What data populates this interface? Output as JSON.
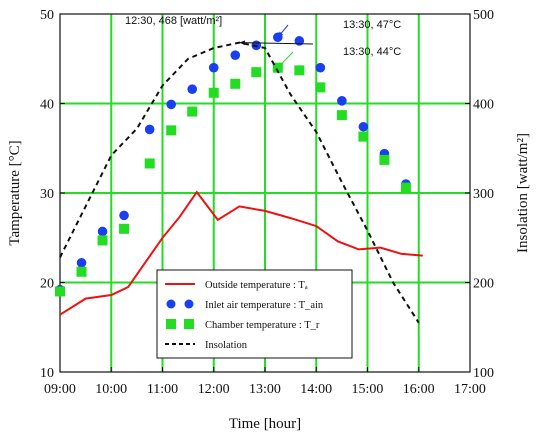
{
  "chart_data": {
    "type": "line",
    "xlabel": "Time [hour]",
    "ylabel_left": "Tamperature  [°C]",
    "ylabel_right": "Insolation [watt/m²]",
    "x_ticks": [
      "09:00",
      "10:00",
      "11:00",
      "12:00",
      "13:00",
      "14:00",
      "15:00",
      "16:00",
      "17:00"
    ],
    "y_left_ticks": [
      "10",
      "20",
      "30",
      "40",
      "50"
    ],
    "y_right_ticks": [
      "100",
      "200",
      "300",
      "400",
      "500"
    ],
    "xlim_hours": [
      9,
      17
    ],
    "ylim_left": [
      10,
      50
    ],
    "ylim_right": [
      100,
      500
    ],
    "grid": true,
    "grid_color": "#22dd22",
    "legend_position": "bottom-center",
    "series": [
      {
        "name": "Outside temperature : Tₐ",
        "kind": "line",
        "axis": "left",
        "color": "#ee1111",
        "x_hours": [
          9.0,
          9.5,
          10.0,
          10.33,
          11.0,
          11.33,
          11.67,
          12.08,
          12.5,
          13.0,
          13.5,
          14.0,
          14.42,
          14.83,
          15.25,
          15.67,
          16.08
        ],
        "values": [
          16.4,
          18.2,
          18.6,
          19.5,
          25.0,
          27.3,
          30.1,
          27.0,
          28.5,
          28.0,
          27.2,
          26.3,
          24.6,
          23.7,
          23.9,
          23.2,
          23.0
        ]
      },
      {
        "name": "Inlet air temperature : T_ain",
        "kind": "scatter-circle",
        "axis": "left",
        "color": "#1a3ff0",
        "x_hours": [
          9.0,
          9.42,
          9.83,
          10.25,
          10.75,
          11.17,
          11.58,
          12.0,
          12.42,
          12.83,
          13.25,
          13.67,
          14.08,
          14.5,
          14.92,
          15.33,
          15.75,
          16.08
        ],
        "values": [
          19.2,
          22.2,
          25.7,
          27.5,
          37.1,
          39.9,
          41.6,
          44.0,
          45.4,
          46.5,
          47.4,
          47.0,
          44.0,
          40.3,
          37.4,
          34.4,
          31.0,
          null
        ]
      },
      {
        "name": "Chamber temperature : T_r",
        "kind": "scatter-square",
        "axis": "left",
        "color": "#22dd22",
        "x_hours": [
          9.0,
          9.42,
          9.83,
          10.25,
          10.75,
          11.17,
          11.58,
          12.0,
          12.42,
          12.83,
          13.25,
          13.67,
          14.08,
          14.5,
          14.92,
          15.33,
          15.75,
          16.08
        ],
        "values": [
          19.0,
          21.2,
          24.7,
          26.0,
          33.3,
          37.0,
          39.1,
          41.2,
          42.2,
          43.5,
          44.0,
          43.7,
          41.8,
          38.7,
          36.3,
          33.7,
          30.6,
          null
        ]
      },
      {
        "name": "Insolation",
        "kind": "dashed-line",
        "axis": "right",
        "color": "#111111",
        "x_hours": [
          9.0,
          9.5,
          10.0,
          10.5,
          11.0,
          11.5,
          12.0,
          12.5,
          13.0,
          13.5,
          14.0,
          14.5,
          15.0,
          15.5,
          16.0
        ],
        "values": [
          228,
          285,
          342,
          372,
          420,
          450,
          462,
          468,
          462,
          410,
          368,
          312,
          258,
          200,
          155
        ]
      }
    ],
    "annotations": [
      {
        "text": "12:30, 468 [watt/m²]",
        "color": "#111111",
        "x_hours": 12.5,
        "y_value": 468,
        "axis": "right"
      },
      {
        "text": "13:30, 47°C",
        "color": "#1a3ff0",
        "x_hours": 13.25,
        "y_value": 47.4,
        "axis": "left"
      },
      {
        "text": "13:30, 44°C",
        "color": "#22dd22",
        "x_hours": 13.25,
        "y_value": 44.0,
        "axis": "left"
      }
    ]
  }
}
